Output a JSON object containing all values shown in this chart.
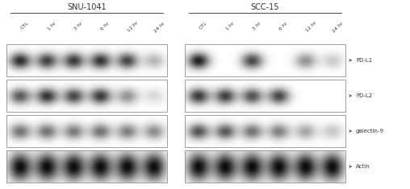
{
  "cell_lines": [
    "SNU-1041",
    "SCC-15"
  ],
  "time_labels": [
    "CTL",
    "1 hr",
    "3 hr",
    "6 hr",
    "12 hr",
    "24 hr"
  ],
  "markers": [
    "PD-L1",
    "PD-L2",
    "galectin-9",
    "Actin"
  ],
  "bg_color": "#ffffff",
  "snu1041_pdl1": [
    0.82,
    0.75,
    0.78,
    0.8,
    0.72,
    0.28
  ],
  "snu1041_pdl2": [
    0.65,
    0.8,
    0.72,
    0.78,
    0.42,
    0.15
  ],
  "snu1041_gal9": [
    0.55,
    0.55,
    0.52,
    0.55,
    0.5,
    0.45
  ],
  "snu1041_actin": [
    0.95,
    0.95,
    0.95,
    0.95,
    0.95,
    0.95
  ],
  "scc15_pdl1": [
    0.88,
    0.0,
    0.72,
    0.0,
    0.42,
    0.2
  ],
  "scc15_pdl2": [
    0.78,
    0.75,
    0.68,
    0.72,
    0.0,
    0.0
  ],
  "scc15_gal9": [
    0.68,
    0.65,
    0.55,
    0.5,
    0.35,
    0.22
  ],
  "scc15_actin": [
    0.95,
    0.95,
    0.95,
    0.95,
    0.95,
    0.95
  ],
  "panel_border_color": "#888888",
  "label_color": "#333333",
  "arrow_color": "#444444"
}
